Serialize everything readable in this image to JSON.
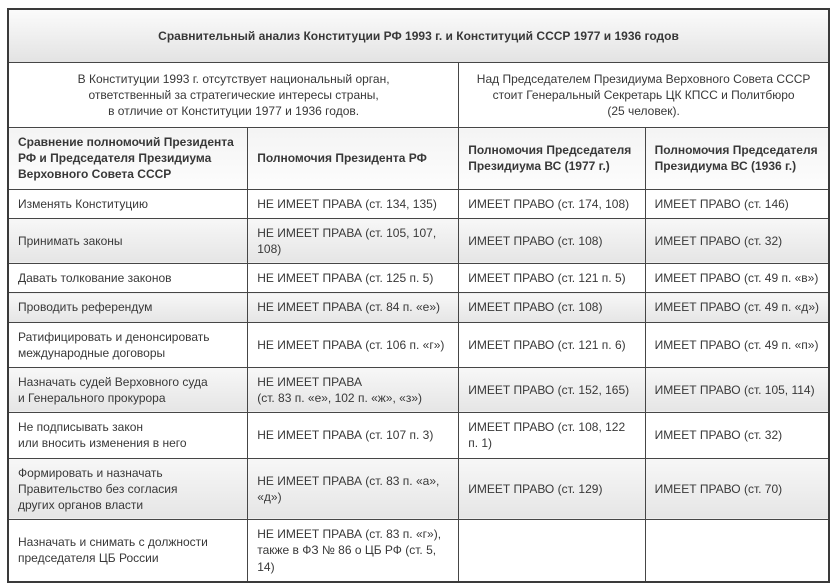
{
  "title": "Сравнительный анализ Конституции РФ 1993 г. и Конституций СССР 1977 и 1936 годов",
  "notes": {
    "left": "В Конституции 1993 г. отсутствует национальный орган,\nответственный за стратегические интересы страны,\nв отличие от Конституции 1977 и 1936 годов.",
    "right": "Над Председателем Президиума Верховного Совета СССР\nстоит Генеральный Секретарь ЦК КПСС и Политбюро\n(25 человек)."
  },
  "table": {
    "headers": [
      "Сравнение полномочий Президента РФ и Председателя Президиума Верховного Совета СССР",
      "Полномочия Президента РФ",
      "Полномочия Председателя Президиума ВС (1977 г.)",
      "Полномочия Председателя Президиума ВС (1936 г.)"
    ],
    "rows": [
      {
        "shaded": false,
        "cells": [
          "Изменять Конституцию",
          "НЕ ИМЕЕТ ПРАВА (ст. 134, 135)",
          "ИМЕЕТ ПРАВО (ст. 174, 108)",
          "ИМЕЕТ ПРАВО (ст. 146)"
        ]
      },
      {
        "shaded": true,
        "cells": [
          "Принимать законы",
          "НЕ ИМЕЕТ ПРАВА (ст. 105, 107, 108)",
          "ИМЕЕТ ПРАВО (ст. 108)",
          "ИМЕЕТ ПРАВО (ст. 32)"
        ]
      },
      {
        "shaded": false,
        "cells": [
          "Давать толкование законов",
          "НЕ ИМЕЕТ ПРАВА (ст. 125 п. 5)",
          "ИМЕЕТ ПРАВО (ст. 121 п. 5)",
          "ИМЕЕТ ПРАВО (ст. 49 п. «в»)"
        ]
      },
      {
        "shaded": true,
        "cells": [
          "Проводить референдум",
          "НЕ ИМЕЕТ ПРАВА (ст. 84 п. «е»)",
          "ИМЕЕТ ПРАВО (ст. 108)",
          "ИМЕЕТ ПРАВО (ст. 49 п. «д»)"
        ]
      },
      {
        "shaded": false,
        "cells": [
          "Ратифицировать и денонсировать\nмеждународные договоры",
          "НЕ ИМЕЕТ ПРАВА (ст. 106 п. «г»)",
          "ИМЕЕТ ПРАВО (ст. 121 п. 6)",
          "ИМЕЕТ ПРАВО (ст. 49 п. «п»)"
        ]
      },
      {
        "shaded": true,
        "cells": [
          "Назначать судей Верховного суда\nи Генерального прокурора",
          "НЕ ИМЕЕТ ПРАВА\n(ст. 83 п. «е», 102 п. «ж», «з»)",
          "ИМЕЕТ ПРАВО (ст. 152, 165)",
          "ИМЕЕТ ПРАВО (ст. 105, 114)"
        ]
      },
      {
        "shaded": false,
        "cells": [
          "Не подписывать закон\nили вносить изменения в него",
          "НЕ ИМЕЕТ ПРАВА (ст. 107 п. 3)",
          "ИМЕЕТ ПРАВО (ст. 108, 122 п. 1)",
          "ИМЕЕТ ПРАВО (ст. 32)"
        ]
      },
      {
        "shaded": true,
        "cells": [
          "Формировать и назначать\nПравительство без согласия\nдругих органов власти",
          "НЕ ИМЕЕТ ПРАВА (ст. 83 п. «а», «д»)",
          "ИМЕЕТ ПРАВО (ст. 129)",
          "ИМЕЕТ ПРАВО (ст. 70)"
        ]
      },
      {
        "shaded": false,
        "cells": [
          "Назначать и снимать с должности\nпредседателя ЦБ России",
          "НЕ ИМЕЕТ ПРАВА (ст. 83 п. «г»),\nтакже в ФЗ № 86 о ЦБ РФ (ст. 5, 14)",
          "",
          ""
        ]
      }
    ]
  },
  "colors": {
    "border": "#3a3a3a",
    "shaded_top": "#f7f7f7",
    "shaded_bottom": "#e5e5e5",
    "text": "#383838"
  }
}
